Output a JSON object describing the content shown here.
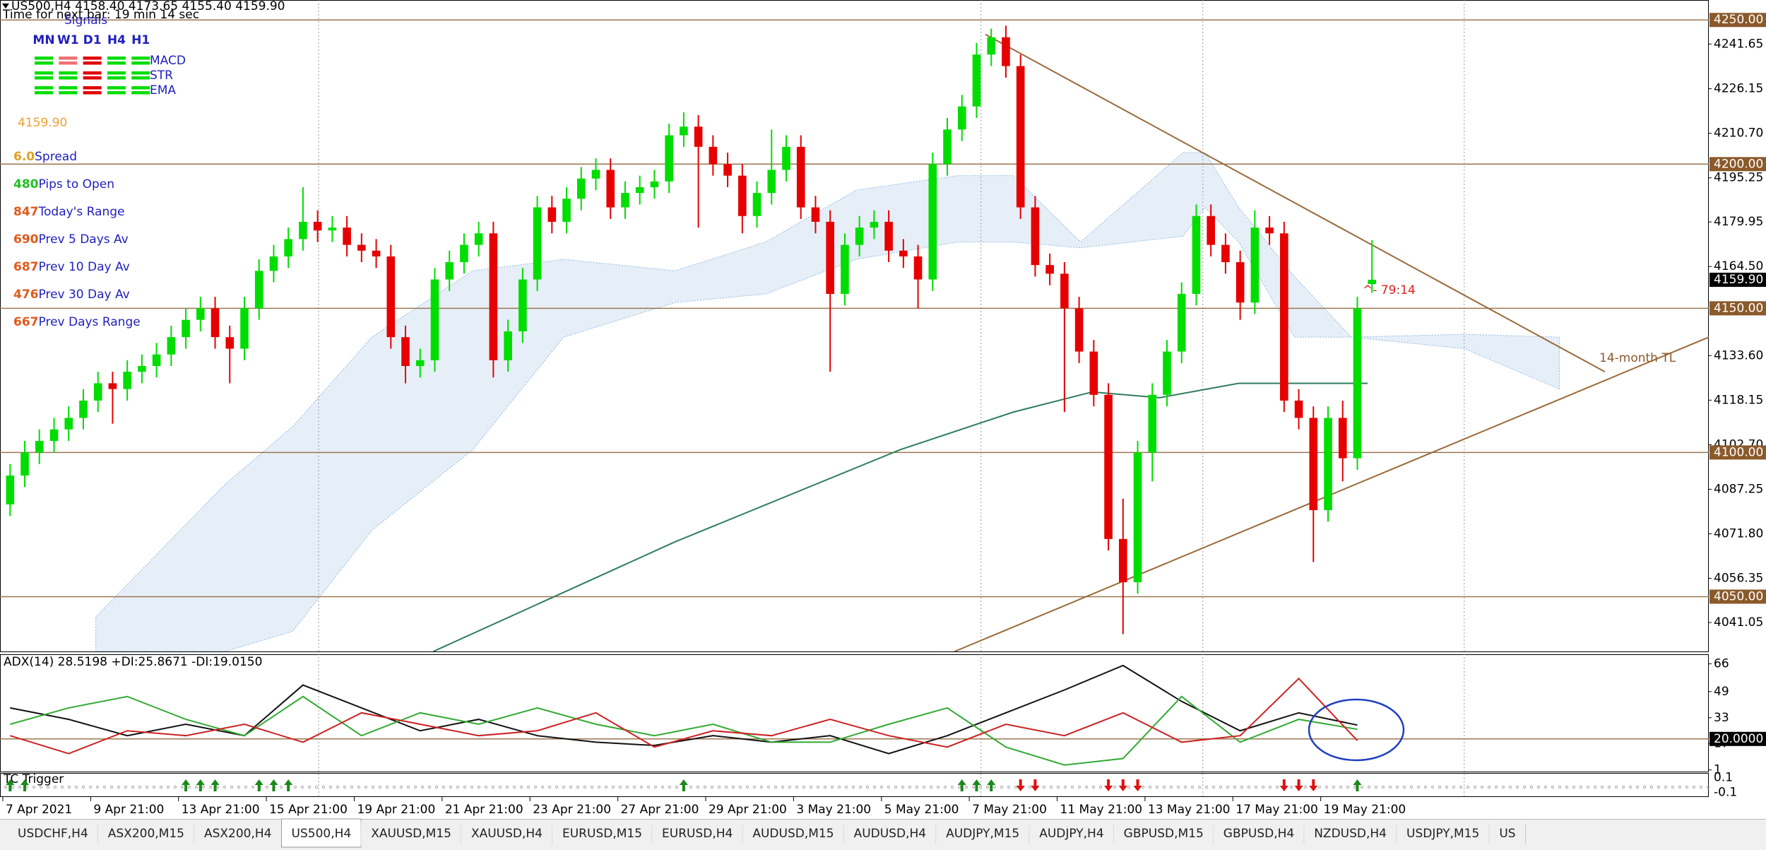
{
  "header": {
    "symbol_line": "US500,H4  4158.40 4173.65 4155.40 4159.90",
    "timer": "Time for next bar: 19 min 14 sec"
  },
  "signals": {
    "title": "Signals",
    "timeframes": [
      "MN",
      "W1",
      "D1",
      "H4",
      "H1"
    ],
    "rows": [
      {
        "name": "MACD",
        "colors": [
          "#00dd00",
          "#f07070",
          "#e00000",
          "#00dd00",
          "#00dd00"
        ]
      },
      {
        "name": "STR",
        "colors": [
          "#00dd00",
          "#00dd00",
          "#e00000",
          "#00dd00",
          "#00dd00"
        ]
      },
      {
        "name": "EMA",
        "colors": [
          "#00dd00",
          "#00dd00",
          "#e00000",
          "#00dd00",
          "#00dd00"
        ]
      }
    ],
    "label_color": "#1f1fbf"
  },
  "price": {
    "text": "4159.90",
    "color": "#f0a030"
  },
  "stats": {
    "label_color": "#1f1fbf",
    "items": [
      {
        "value": "6.0",
        "label": "Spread",
        "color": "#e0a020"
      },
      {
        "value": "480",
        "label": "Pips to Open",
        "color": "#22c022"
      },
      {
        "value": "847",
        "label": "Today's Range",
        "color": "#e05a1a"
      },
      {
        "value": "690",
        "label": "Prev 5 Days Av",
        "color": "#e05a1a"
      },
      {
        "value": "687",
        "label": "Prev 10 Day Av",
        "color": "#e05a1a"
      },
      {
        "value": "476",
        "label": "Prev 30 Day Av",
        "color": "#e05a1a"
      },
      {
        "value": "667",
        "label": "Prev Days Range",
        "color": "#e05a1a"
      }
    ]
  },
  "annotations": {
    "countdown": "^- 79:14",
    "countdown_color": "#e02020",
    "trendline_label": "14-month TL",
    "trendline_label_color": "#8b5a2b"
  },
  "chart_data": [
    {
      "type": "candlestick",
      "up_color": "#00dd00",
      "down_color": "#e60000",
      "xlim": [
        -0.69,
        116.0
      ],
      "ylim": [
        4031,
        4253
      ],
      "open": [
        4082,
        4092,
        4100,
        4104,
        4108,
        4112,
        4118,
        4124,
        4122,
        4128,
        4130,
        4134,
        4140,
        4146,
        4150,
        4140,
        4136,
        4150,
        4163,
        4168,
        4174,
        4180,
        4177,
        4178,
        4172,
        4170,
        4168,
        4140,
        4130,
        4132,
        4160,
        4166,
        4172,
        4176,
        4132,
        4142,
        4160,
        4185,
        4180,
        4188,
        4195,
        4198,
        4185,
        4190,
        4192,
        4194,
        4210,
        4213,
        4206,
        4200,
        4196,
        4182,
        4190,
        4198,
        4206,
        4185,
        4180,
        4155,
        4172,
        4178,
        4180,
        4170,
        4168,
        4160,
        4200,
        4212,
        4220,
        4238,
        4244,
        4234,
        4185,
        4165,
        4162,
        4150,
        4135,
        4120,
        4070,
        4055,
        4100,
        4120,
        4135,
        4155,
        4182,
        4172,
        4166,
        4152,
        4178,
        4176,
        4118,
        4112,
        4080,
        4112,
        4098,
        4158.4
      ],
      "high": [
        4096,
        4104,
        4108,
        4112,
        4116,
        4122,
        4128,
        4128,
        4132,
        4134,
        4138,
        4144,
        4150,
        4154,
        4154,
        4144,
        4154,
        4167,
        4172,
        4178,
        4192,
        4184,
        4182,
        4182,
        4176,
        4174,
        4172,
        4144,
        4136,
        4164,
        4170,
        4176,
        4180,
        4180,
        4146,
        4164,
        4189,
        4189,
        4192,
        4199,
        4202,
        4202,
        4194,
        4196,
        4198,
        4214,
        4218,
        4217,
        4210,
        4204,
        4200,
        4194,
        4212,
        4210,
        4210,
        4189,
        4184,
        4176,
        4182,
        4184,
        4184,
        4174,
        4172,
        4204,
        4216,
        4224,
        4242,
        4247,
        4248,
        4238,
        4189,
        4169,
        4166,
        4154,
        4139,
        4124,
        4084,
        4104,
        4124,
        4139,
        4159,
        4186,
        4186,
        4176,
        4170,
        4184,
        4182,
        4180,
        4122,
        4116,
        4116,
        4118,
        4154,
        4173.65
      ],
      "low": [
        4078,
        4088,
        4096,
        4100,
        4104,
        4108,
        4114,
        4110,
        4118,
        4124,
        4126,
        4130,
        4136,
        4142,
        4136,
        4124,
        4132,
        4146,
        4159,
        4164,
        4170,
        4173,
        4173,
        4168,
        4166,
        4164,
        4136,
        4124,
        4126,
        4128,
        4156,
        4162,
        4168,
        4126,
        4128,
        4138,
        4156,
        4176,
        4176,
        4184,
        4191,
        4181,
        4181,
        4186,
        4188,
        4190,
        4206,
        4178,
        4196,
        4192,
        4176,
        4178,
        4186,
        4194,
        4181,
        4176,
        4128,
        4151,
        4168,
        4174,
        4166,
        4164,
        4150,
        4156,
        4196,
        4208,
        4216,
        4234,
        4230,
        4181,
        4161,
        4158,
        4114,
        4131,
        4116,
        4066,
        4037,
        4051,
        4090,
        4116,
        4131,
        4151,
        4168,
        4162,
        4146,
        4148,
        4172,
        4114,
        4108,
        4062,
        4076,
        4090,
        4094,
        4155.4
      ],
      "close": [
        4092,
        4100,
        4104,
        4108,
        4112,
        4118,
        4124,
        4122,
        4128,
        4130,
        4134,
        4140,
        4146,
        4150,
        4140,
        4136,
        4150,
        4163,
        4168,
        4174,
        4180,
        4177,
        4178,
        4172,
        4170,
        4168,
        4140,
        4130,
        4132,
        4160,
        4166,
        4172,
        4176,
        4132,
        4142,
        4160,
        4185,
        4180,
        4188,
        4195,
        4198,
        4185,
        4190,
        4192,
        4194,
        4210,
        4213,
        4206,
        4200,
        4196,
        4182,
        4190,
        4198,
        4206,
        4185,
        4180,
        4155,
        4172,
        4178,
        4180,
        4170,
        4168,
        4160,
        4200,
        4212,
        4220,
        4238,
        4244,
        4234,
        4185,
        4165,
        4162,
        4150,
        4135,
        4120,
        4070,
        4055,
        4100,
        4120,
        4135,
        4155,
        4182,
        4172,
        4166,
        4152,
        4178,
        4176,
        4118,
        4112,
        4080,
        4112,
        4098,
        4150,
        4159.9
      ],
      "yticks": [
        4241.65,
        4226.15,
        {
          "value": 4210.7,
          "label": "4210.70"
        },
        4195.25,
        4179.95,
        {
          "value": 4164.5,
          "label": "4164.50"
        },
        {
          "value": 4133.6,
          "label": "4133.60"
        },
        4118.15,
        {
          "value": 4102.7,
          "label": "4102.70"
        },
        4087.25,
        {
          "value": 4071.8,
          "label": "4071.80"
        },
        4056.35,
        4041.05
      ],
      "levels": [
        {
          "value": 4250,
          "label": "4250.00"
        },
        {
          "value": 4200,
          "label": "4200.00"
        },
        {
          "value": 4150,
          "label": "4150.00"
        },
        {
          "value": 4100,
          "label": "4100.00"
        },
        {
          "value": 4050,
          "label": "4050.00"
        }
      ],
      "level_color": "#9b7650",
      "last_price": {
        "value": 4159.9,
        "label": "4159.90"
      },
      "xticks": [
        {
          "value": -0.5,
          "label": "7 Apr 2021"
        },
        {
          "value": 5.5,
          "label": "9 Apr 21:00"
        },
        {
          "value": 11.5,
          "label": "13 Apr 21:00"
        },
        {
          "value": 17.5,
          "label": "15 Apr 21:00"
        },
        {
          "value": 23.5,
          "label": "19 Apr 21:00"
        },
        {
          "value": 29.5,
          "label": "21 Apr 21:00"
        },
        {
          "value": 35.5,
          "label": "23 Apr 21:00"
        },
        {
          "value": 41.5,
          "label": "27 Apr 21:00"
        },
        {
          "value": 47.5,
          "label": "29 Apr 21:00"
        },
        {
          "value": 53.5,
          "label": "3 May 21:00"
        },
        {
          "value": 59.5,
          "label": "5 May 21:00"
        },
        {
          "value": 65.5,
          "label": "7 May 21:00"
        },
        {
          "value": 71.5,
          "label": "11 May 21:00"
        },
        {
          "value": 77.5,
          "label": "13 May 21:00"
        },
        {
          "value": 83.5,
          "label": "17 May 21:00"
        },
        {
          "value": 89.5,
          "label": "19 May 21:00"
        }
      ],
      "separators": [
        21.07,
        66.3,
        81.45,
        99.3
      ],
      "cloud": {
        "color": "#8fb8e0",
        "x": [
          5.85,
          14.69,
          19.3,
          24.7,
          31.6,
          37.8,
          45.4,
          51.6,
          57.8,
          64.7,
          68.5,
          73.1,
          80.1,
          81.6,
          83.9,
          87.7,
          91.6,
          99.3,
          105.8
        ],
        "upper": [
          4043,
          4089,
          4109,
          4140,
          4163,
          4167,
          4163,
          4173,
          4191,
          4196,
          4196,
          4173,
          4204,
          4204,
          4185,
          4161,
          4140,
          4141,
          4140
        ],
        "lower": [
          4031,
          4031,
          4038,
          4073,
          4101,
          4140,
          4152,
          4155,
          4167,
          4173,
          4173,
          4171,
          4175,
          4185,
          4173,
          4140,
          4140,
          4136,
          4122
        ]
      },
      "ma": {
        "color": "#2e7d5b",
        "x": [
          28.9,
          45.4,
          60.8,
          68.5,
          73.9,
          78.5,
          83.9,
          92.7
        ],
        "values": [
          4031,
          4069,
          4101,
          4114,
          4121,
          4119,
          4124,
          4124
        ]
      },
      "trendlines": {
        "color": "#9a6a3a",
        "lines": [
          {
            "x": [
              66.6,
              108.9
            ],
            "y": [
              4245,
              4128
            ]
          },
          {
            "x": [
              64.5,
              116.0
            ],
            "y": [
              4031,
              4140
            ]
          }
        ]
      }
    },
    {
      "type": "line",
      "title": "ADX(14) 28.5198 +DI:25.8671 -DI:19.0150",
      "ylim": [
        0,
        71
      ],
      "yticks": [
        66,
        49,
        33,
        17,
        1
      ],
      "level": {
        "value": 20,
        "label": "20.0000",
        "color": "#9b7650"
      },
      "x": [
        0,
        4,
        8,
        12,
        16,
        20,
        24,
        28,
        32,
        36,
        40,
        44,
        48,
        52,
        56,
        60,
        64,
        68,
        72,
        76,
        80,
        84,
        88,
        92
      ],
      "series": [
        {
          "color": "#111111",
          "values": [
            39,
            32,
            22,
            29,
            22,
            53,
            39,
            25,
            32,
            22,
            18,
            16,
            22,
            18,
            22,
            11,
            22,
            36,
            50,
            65,
            43,
            25,
            36,
            28.5
          ]
        },
        {
          "color": "#33aa33",
          "values": [
            29,
            39,
            46,
            32,
            22,
            46,
            22,
            36,
            29,
            39,
            29,
            22,
            29,
            18,
            18,
            29,
            39,
            15,
            4,
            8,
            46,
            18,
            32,
            25.9
          ]
        },
        {
          "color": "#cc2222",
          "values": [
            22,
            11,
            25,
            22,
            29,
            18,
            36,
            29,
            22,
            25,
            36,
            15,
            25,
            22,
            32,
            22,
            15,
            29,
            22,
            36,
            18,
            22,
            57,
            19
          ]
        }
      ]
    },
    {
      "type": "signals",
      "title": "TC Trigger",
      "ylim": [
        -0.15,
        0.15
      ],
      "yticks": [
        0.1,
        -0.1
      ],
      "up": [
        0,
        1,
        12,
        13,
        14,
        17,
        18,
        19,
        46,
        65,
        66,
        67,
        92
      ],
      "down": [
        69,
        70,
        75,
        76,
        77,
        87,
        88,
        89
      ],
      "up_color": "#1a8a1a",
      "down_color": "#e01010"
    }
  ],
  "tabs": {
    "items": [
      "USDCHF,H4",
      "ASX200,M15",
      "ASX200,H4",
      "US500,H4",
      "XAUUSD,M15",
      "XAUUSD,H4",
      "EURUSD,M15",
      "EURUSD,H4",
      "AUDUSD,M15",
      "AUDUSD,H4",
      "AUDJPY,M15",
      "AUDJPY,H4",
      "GBPUSD,M15",
      "GBPUSD,H4",
      "NZDUSD,H4",
      "USDJPY,M15",
      "US"
    ],
    "active": 3
  }
}
